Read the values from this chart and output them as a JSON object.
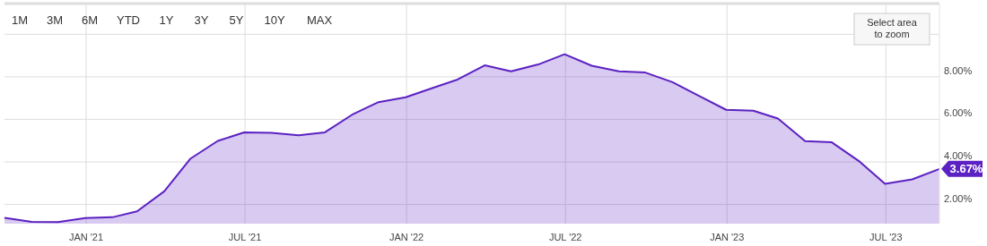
{
  "chart_data": {
    "type": "area",
    "x": [
      "2020-09-30",
      "2020-10-31",
      "2020-11-30",
      "2020-12-31",
      "2021-01-31",
      "2021-02-28",
      "2021-03-31",
      "2021-04-30",
      "2021-05-31",
      "2021-06-30",
      "2021-07-31",
      "2021-08-31",
      "2021-09-30",
      "2021-10-31",
      "2021-11-30",
      "2021-12-31",
      "2022-01-31",
      "2022-02-28",
      "2022-03-31",
      "2022-04-30",
      "2022-05-31",
      "2022-06-30",
      "2022-07-31",
      "2022-08-31",
      "2022-09-30",
      "2022-10-31",
      "2022-11-30",
      "2022-12-31",
      "2023-01-31",
      "2023-02-28",
      "2023-03-31",
      "2023-04-30",
      "2023-05-31",
      "2023-06-30",
      "2023-07-31",
      "2023-08-31"
    ],
    "series": [
      {
        "color": "#5b21c2",
        "values": [
          1.37,
          1.18,
          1.17,
          1.36,
          1.4,
          1.68,
          2.62,
          4.16,
          4.99,
          5.39,
          5.37,
          5.25,
          5.39,
          6.22,
          6.81,
          7.04,
          7.48,
          7.87,
          8.54,
          8.26,
          8.58,
          9.06,
          8.52,
          8.26,
          8.2,
          7.75,
          7.11,
          6.45,
          6.41,
          6.04,
          4.98,
          4.93,
          4.05,
          2.97,
          3.18,
          3.67
        ],
        "value_labels": [
          null,
          null,
          null,
          null,
          null,
          null,
          null,
          null,
          null,
          null,
          null,
          null,
          null,
          null,
          null,
          null,
          null,
          null,
          null,
          null,
          null,
          null,
          null,
          null,
          null,
          null,
          null,
          null,
          null,
          null,
          null,
          null,
          null,
          null,
          null,
          "3.67%"
        ]
      }
    ],
    "xlim": [
      "2020-09-30",
      "2023-08-31"
    ],
    "xticks": [
      {
        "value": "2021-01-01",
        "label": "JAN '21"
      },
      {
        "value": "2021-07-01",
        "label": "JUL '21"
      },
      {
        "value": "2022-01-01",
        "label": "JAN '22"
      },
      {
        "value": "2022-07-01",
        "label": "JUL '22"
      },
      {
        "value": "2023-01-01",
        "label": "JAN '23"
      },
      {
        "value": "2023-07-01",
        "label": "JUL '23"
      }
    ],
    "ylim": [
      1.1,
      11.4
    ],
    "yticks": [
      {
        "value": 2,
        "label": "2.00%"
      },
      {
        "value": 4,
        "label": "4.00%"
      },
      {
        "value": 6,
        "label": "6.00%"
      },
      {
        "value": 8,
        "label": "8.00%"
      },
      {
        "value": 10,
        "label": null
      }
    ],
    "grid": true,
    "annotations": [
      "1M",
      "3M",
      "6M",
      "YTD",
      "1Y",
      "3Y",
      "5Y",
      "10Y",
      "MAX",
      "Select area to zoom"
    ]
  }
}
